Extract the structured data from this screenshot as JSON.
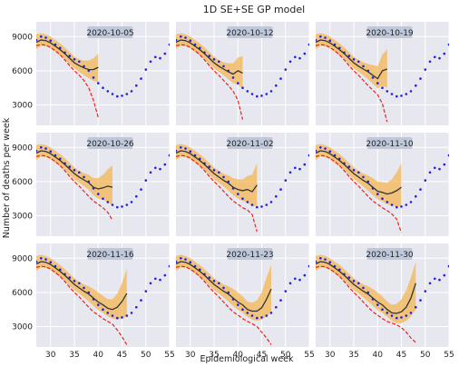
{
  "chart_data": {
    "type": "line",
    "title": "1D SE+SE GP model",
    "xlabel": "Epidemiological week",
    "ylabel": "Number of deaths per week",
    "xlim": [
      27,
      55
    ],
    "ylim": [
      1200,
      10300
    ],
    "x_ticks": [
      30,
      35,
      40,
      45,
      50,
      55
    ],
    "y_ticks": [
      3000,
      6000,
      9000
    ],
    "grid": true,
    "style": "seaborn-darkgrid",
    "colors": {
      "panel_bg": "#e7e7ef",
      "grid": "#ffffff",
      "observed": "#1f1fe6",
      "prediction": "#333333",
      "band": "#f5b54c",
      "trend": "#e8231a",
      "label_box": "#b9c4d8"
    },
    "observed": {
      "x": [
        27,
        28,
        29,
        30,
        31,
        32,
        33,
        34,
        35,
        36,
        37,
        38,
        39,
        40,
        41,
        42,
        43,
        44,
        45,
        46,
        47,
        48,
        49,
        50,
        51,
        52,
        53,
        54,
        55
      ],
      "y": [
        8700,
        9000,
        8900,
        8650,
        8300,
        8000,
        7600,
        7300,
        7000,
        6800,
        6400,
        6000,
        5400,
        4900,
        4500,
        4200,
        3950,
        3750,
        3800,
        3950,
        4200,
        4700,
        5300,
        6100,
        6800,
        7200,
        7100,
        7500,
        8300
      ]
    },
    "panels": [
      {
        "label": "2020-10-05",
        "x": [
          27,
          28,
          29,
          30,
          31,
          32,
          33,
          34,
          35,
          36,
          37,
          38,
          39,
          40
        ],
        "pred": [
          8500,
          8700,
          8650,
          8450,
          8150,
          7850,
          7500,
          7100,
          6700,
          6450,
          6250,
          6100,
          6100,
          6300
        ],
        "lower": [
          7900,
          8200,
          8150,
          7950,
          7650,
          7350,
          7000,
          6600,
          6200,
          5900,
          5600,
          5350,
          5100,
          5000
        ],
        "upper": [
          9200,
          9300,
          9200,
          9000,
          8700,
          8400,
          8050,
          7650,
          7250,
          7000,
          6900,
          6900,
          7100,
          7500
        ],
        "trend": [
          8200,
          8300,
          8250,
          8050,
          7750,
          7400,
          6950,
          6450,
          6000,
          5600,
          5150,
          4500,
          3400,
          1900
        ]
      },
      {
        "label": "2020-10-12",
        "x": [
          27,
          28,
          29,
          30,
          31,
          32,
          33,
          34,
          35,
          36,
          37,
          38,
          39,
          40,
          41
        ],
        "pred": [
          8500,
          8700,
          8650,
          8450,
          8150,
          7850,
          7500,
          7100,
          6700,
          6400,
          6150,
          5900,
          5700,
          6000,
          5800
        ],
        "lower": [
          7900,
          8200,
          8150,
          7950,
          7650,
          7350,
          7000,
          6600,
          6200,
          5900,
          5600,
          5250,
          4900,
          4800,
          4400
        ],
        "upper": [
          9200,
          9300,
          9200,
          9000,
          8700,
          8400,
          8050,
          7650,
          7250,
          6950,
          6750,
          6650,
          6650,
          7150,
          7300
        ],
        "trend": [
          8200,
          8300,
          8250,
          8050,
          7750,
          7400,
          6950,
          6450,
          6000,
          5600,
          5150,
          4700,
          4200,
          3400,
          1700
        ]
      },
      {
        "label": "2020-10-19",
        "x": [
          27,
          28,
          29,
          30,
          31,
          32,
          33,
          34,
          35,
          36,
          37,
          38,
          39,
          40,
          41,
          42
        ],
        "pred": [
          8500,
          8700,
          8650,
          8450,
          8150,
          7850,
          7500,
          7100,
          6700,
          6400,
          6150,
          5900,
          5600,
          5300,
          6000,
          6150
        ],
        "lower": [
          7900,
          8200,
          8150,
          7950,
          7650,
          7350,
          7000,
          6600,
          6200,
          5900,
          5600,
          5250,
          4850,
          4450,
          4700,
          4500
        ],
        "upper": [
          9200,
          9300,
          9200,
          9000,
          8700,
          8400,
          8050,
          7650,
          7250,
          6950,
          6750,
          6600,
          6500,
          6400,
          7400,
          7900
        ],
        "trend": [
          8200,
          8300,
          8250,
          8050,
          7750,
          7400,
          6950,
          6450,
          6000,
          5600,
          5150,
          4700,
          4300,
          3900,
          3100,
          1500
        ]
      },
      {
        "label": "2020-10-26",
        "x": [
          27,
          28,
          29,
          30,
          31,
          32,
          33,
          34,
          35,
          36,
          37,
          38,
          39,
          40,
          41,
          42,
          43
        ],
        "pred": [
          8500,
          8700,
          8650,
          8450,
          8150,
          7850,
          7500,
          7100,
          6700,
          6400,
          6150,
          5900,
          5500,
          5350,
          5450,
          5600,
          5500
        ],
        "lower": [
          7900,
          8200,
          8150,
          7950,
          7650,
          7350,
          7000,
          6600,
          6200,
          5900,
          5600,
          5250,
          4800,
          4500,
          4400,
          4200,
          3900
        ],
        "upper": [
          9200,
          9300,
          9200,
          9000,
          8700,
          8400,
          8050,
          7650,
          7250,
          6950,
          6750,
          6600,
          6300,
          6300,
          6600,
          7100,
          7400
        ],
        "trend": [
          8200,
          8300,
          8250,
          8050,
          7750,
          7400,
          6950,
          6450,
          6000,
          5600,
          5150,
          4700,
          4300,
          4000,
          3700,
          3300,
          2600
        ]
      },
      {
        "label": "2020-11-02",
        "x": [
          27,
          28,
          29,
          30,
          31,
          32,
          33,
          34,
          35,
          36,
          37,
          38,
          39,
          40,
          41,
          42,
          43,
          44
        ],
        "pred": [
          8500,
          8700,
          8650,
          8450,
          8150,
          7850,
          7500,
          7100,
          6700,
          6400,
          6100,
          5850,
          5500,
          5300,
          5200,
          5300,
          5100,
          5700
        ],
        "lower": [
          7900,
          8200,
          8150,
          7950,
          7650,
          7350,
          7000,
          6600,
          6200,
          5900,
          5550,
          5200,
          4800,
          4500,
          4300,
          4150,
          3800,
          3900
        ],
        "upper": [
          9200,
          9300,
          9200,
          9000,
          8700,
          8400,
          8050,
          7650,
          7250,
          6950,
          6700,
          6550,
          6300,
          6200,
          6200,
          6500,
          6600,
          7600
        ],
        "trend": [
          8200,
          8300,
          8250,
          8050,
          7750,
          7400,
          6950,
          6450,
          6000,
          5600,
          5150,
          4700,
          4300,
          4000,
          3700,
          3500,
          3100,
          1600
        ]
      },
      {
        "label": "2020-11-10",
        "x": [
          27,
          28,
          29,
          30,
          31,
          32,
          33,
          34,
          35,
          36,
          37,
          38,
          39,
          40,
          41,
          42,
          43,
          44,
          45
        ],
        "pred": [
          8500,
          8700,
          8650,
          8450,
          8150,
          7850,
          7500,
          7100,
          6700,
          6400,
          6100,
          5850,
          5500,
          5150,
          5050,
          4900,
          5000,
          5200,
          5500
        ],
        "lower": [
          7900,
          8200,
          8150,
          7950,
          7650,
          7350,
          7000,
          6600,
          6200,
          5900,
          5550,
          5200,
          4800,
          4450,
          4250,
          4000,
          3900,
          3800,
          3800
        ],
        "upper": [
          9200,
          9300,
          9200,
          9000,
          8700,
          8400,
          8050,
          7650,
          7250,
          6950,
          6700,
          6550,
          6300,
          6000,
          5950,
          5900,
          6200,
          6800,
          7600
        ],
        "trend": [
          8200,
          8300,
          8250,
          8050,
          7750,
          7400,
          6950,
          6450,
          6000,
          5600,
          5150,
          4700,
          4300,
          4000,
          3700,
          3450,
          3150,
          2700,
          1500
        ]
      },
      {
        "label": "2020-11-16",
        "x": [
          27,
          28,
          29,
          30,
          31,
          32,
          33,
          34,
          35,
          36,
          37,
          38,
          39,
          40,
          41,
          42,
          43,
          44,
          45,
          46
        ],
        "pred": [
          8500,
          8700,
          8650,
          8450,
          8150,
          7850,
          7500,
          7100,
          6700,
          6400,
          6100,
          5850,
          5500,
          5150,
          4900,
          4600,
          4500,
          4700,
          5200,
          5900
        ],
        "lower": [
          7900,
          8200,
          8150,
          7950,
          7650,
          7350,
          7000,
          6600,
          6200,
          5900,
          5550,
          5200,
          4800,
          4450,
          4200,
          3900,
          3700,
          3600,
          3700,
          3900
        ],
        "upper": [
          9200,
          9300,
          9200,
          9000,
          8700,
          8400,
          8050,
          7650,
          7250,
          6950,
          6700,
          6550,
          6300,
          6000,
          5700,
          5400,
          5400,
          5900,
          6800,
          8100
        ],
        "trend": [
          8200,
          8300,
          8250,
          8050,
          7750,
          7400,
          6950,
          6450,
          6000,
          5600,
          5150,
          4700,
          4300,
          4000,
          3700,
          3450,
          3200,
          2700,
          2100,
          1400
        ]
      },
      {
        "label": "2020-11-23",
        "x": [
          27,
          28,
          29,
          30,
          31,
          32,
          33,
          34,
          35,
          36,
          37,
          38,
          39,
          40,
          41,
          42,
          43,
          44,
          45,
          46,
          47
        ],
        "pred": [
          8500,
          8700,
          8650,
          8450,
          8150,
          7850,
          7500,
          7100,
          6700,
          6400,
          6100,
          5850,
          5500,
          5150,
          4900,
          4500,
          4350,
          4350,
          4650,
          5400,
          6300
        ],
        "lower": [
          7900,
          8200,
          8150,
          7950,
          7650,
          7350,
          7000,
          6600,
          6200,
          5900,
          5550,
          5200,
          4800,
          4450,
          4200,
          3850,
          3600,
          3500,
          3600,
          3900,
          4200
        ],
        "upper": [
          9200,
          9300,
          9200,
          9000,
          8700,
          8400,
          8050,
          7650,
          7250,
          6950,
          6700,
          6550,
          6300,
          6000,
          5650,
          5200,
          5100,
          5300,
          6000,
          7300,
          8400
        ],
        "trend": [
          8200,
          8300,
          8250,
          8050,
          7750,
          7400,
          6950,
          6450,
          6000,
          5600,
          5150,
          4700,
          4300,
          4000,
          3700,
          3450,
          3250,
          3000,
          2500,
          2000,
          1400
        ]
      },
      {
        "label": "2020-11-30",
        "x": [
          27,
          28,
          29,
          30,
          31,
          32,
          33,
          34,
          35,
          36,
          37,
          38,
          39,
          40,
          41,
          42,
          43,
          44,
          45,
          46,
          47,
          48
        ],
        "pred": [
          8500,
          8700,
          8650,
          8450,
          8150,
          7850,
          7500,
          7100,
          6700,
          6400,
          6100,
          5850,
          5500,
          5150,
          4900,
          4500,
          4200,
          4150,
          4300,
          4700,
          5500,
          6800
        ],
        "lower": [
          7900,
          8200,
          8150,
          7950,
          7650,
          7350,
          7000,
          6600,
          6200,
          5900,
          5550,
          5200,
          4800,
          4450,
          4200,
          3850,
          3500,
          3300,
          3300,
          3500,
          3900,
          4500
        ],
        "upper": [
          9200,
          9300,
          9200,
          9000,
          8700,
          8400,
          8050,
          7650,
          7250,
          6950,
          6700,
          6550,
          6300,
          6000,
          5650,
          5200,
          4900,
          5000,
          5400,
          6200,
          7300,
          8700
        ],
        "trend": [
          8200,
          8300,
          8250,
          8050,
          7750,
          7400,
          6950,
          6450,
          6000,
          5600,
          5150,
          4700,
          4300,
          4000,
          3700,
          3450,
          3300,
          3150,
          2900,
          2500,
          2000,
          1600
        ]
      }
    ]
  }
}
